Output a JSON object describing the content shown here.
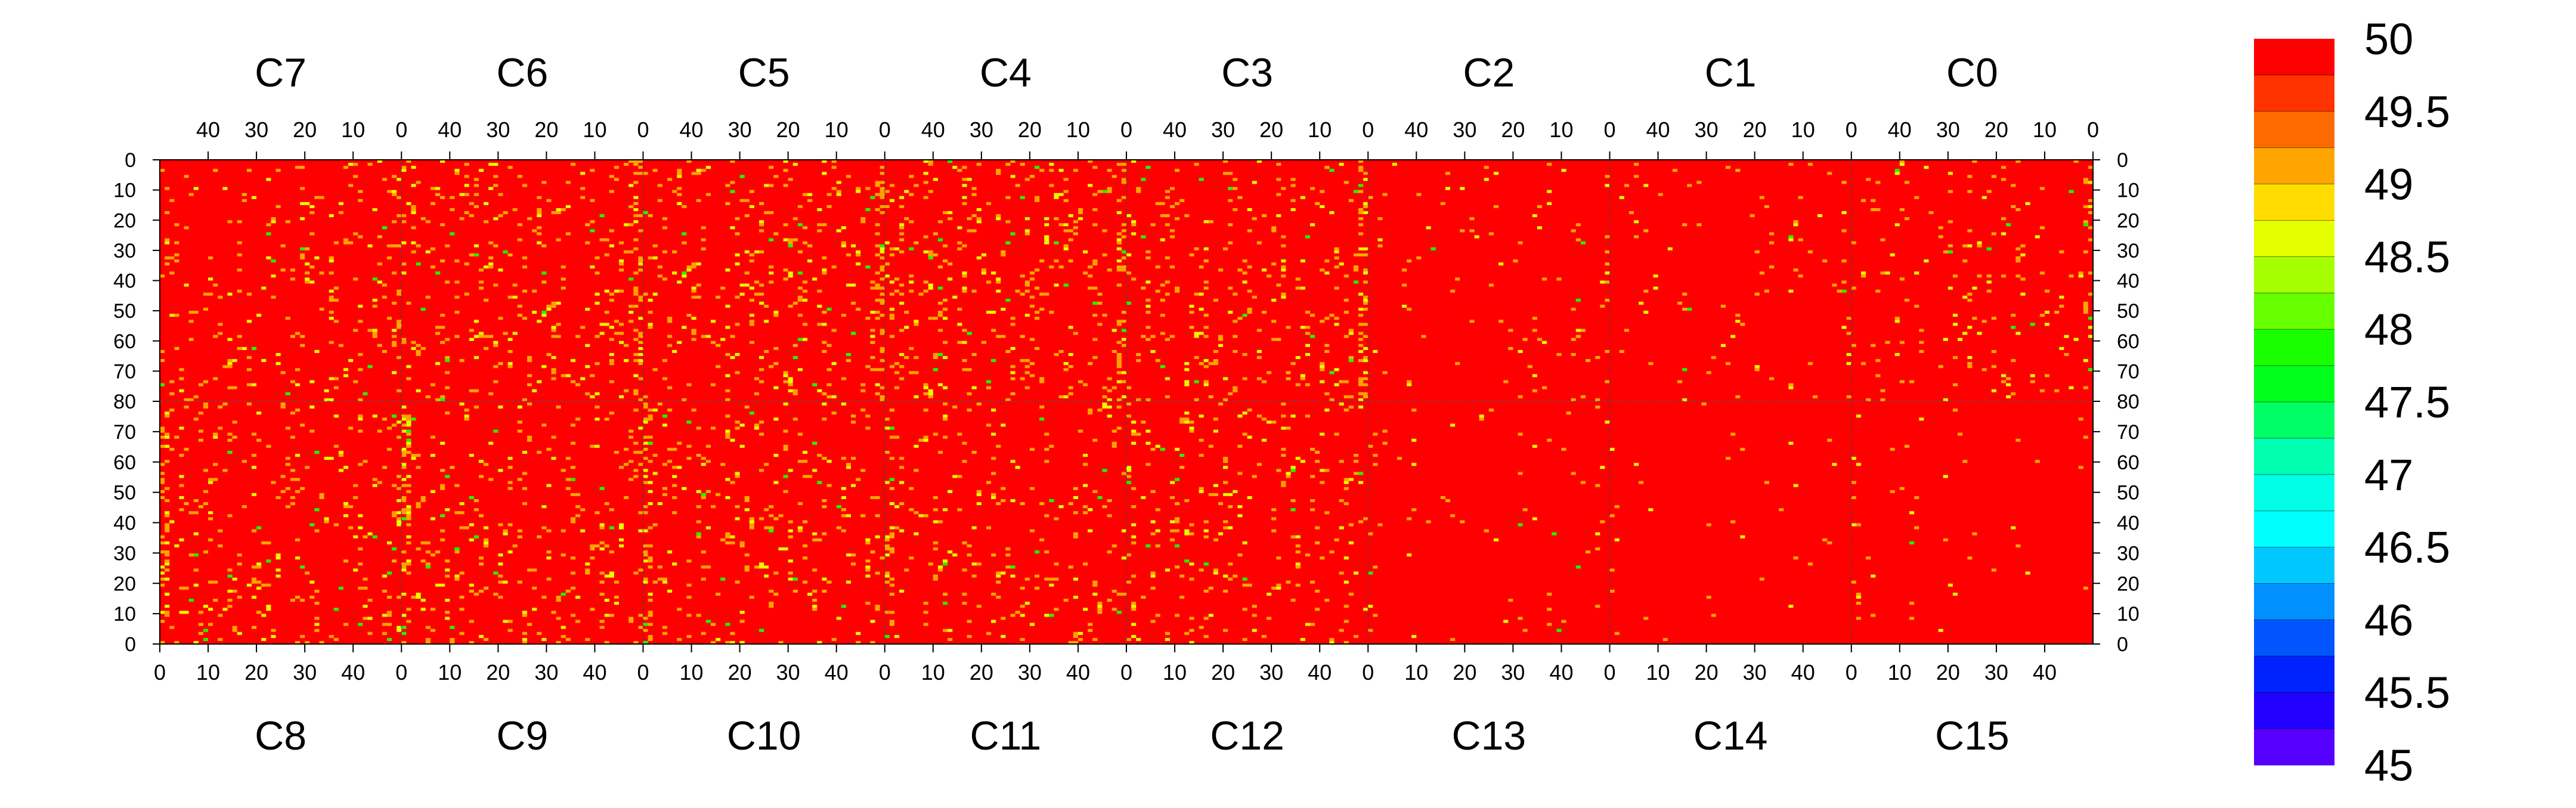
{
  "chart_data": {
    "type": "heatmap",
    "title": "",
    "xlabel": "",
    "ylabel": "",
    "top_panels": [
      {
        "label": "C7",
        "x_ticks": [
          40,
          30,
          20,
          10,
          0
        ],
        "x_range": [
          50,
          0
        ]
      },
      {
        "label": "C6",
        "x_ticks": [
          40,
          30,
          20,
          10,
          0
        ],
        "x_range": [
          50,
          0
        ]
      },
      {
        "label": "C5",
        "x_ticks": [
          40,
          30,
          20,
          10,
          0
        ],
        "x_range": [
          50,
          0
        ]
      },
      {
        "label": "C4",
        "x_ticks": [
          40,
          30,
          20,
          10,
          0
        ],
        "x_range": [
          50,
          0
        ]
      },
      {
        "label": "C3",
        "x_ticks": [
          40,
          30,
          20,
          10,
          0
        ],
        "x_range": [
          50,
          0
        ]
      },
      {
        "label": "C2",
        "x_ticks": [
          40,
          30,
          20,
          10,
          0
        ],
        "x_range": [
          50,
          0
        ]
      },
      {
        "label": "C1",
        "x_ticks": [
          40,
          30,
          20,
          10,
          0
        ],
        "x_range": [
          50,
          0
        ]
      },
      {
        "label": "C0",
        "x_ticks": [
          40,
          30,
          20,
          10,
          0
        ],
        "x_range": [
          50,
          0
        ]
      }
    ],
    "bottom_panels": [
      {
        "label": "C8",
        "x_ticks": [
          0,
          10,
          20,
          30,
          40
        ],
        "x_range": [
          0,
          50
        ]
      },
      {
        "label": "C9",
        "x_ticks": [
          0,
          10,
          20,
          30,
          40
        ],
        "x_range": [
          0,
          50
        ]
      },
      {
        "label": "C10",
        "x_ticks": [
          0,
          10,
          20,
          30,
          40
        ],
        "x_range": [
          0,
          50
        ]
      },
      {
        "label": "C11",
        "x_ticks": [
          0,
          10,
          20,
          30,
          40
        ],
        "x_range": [
          0,
          50
        ]
      },
      {
        "label": "C12",
        "x_ticks": [
          0,
          10,
          20,
          30,
          40
        ],
        "x_range": [
          0,
          50
        ]
      },
      {
        "label": "C13",
        "x_ticks": [
          0,
          10,
          20,
          30,
          40
        ],
        "x_range": [
          0,
          50
        ]
      },
      {
        "label": "C14",
        "x_ticks": [
          0,
          10,
          20,
          30,
          40
        ],
        "x_range": [
          0,
          50
        ]
      },
      {
        "label": "C15",
        "x_ticks": [
          0,
          10,
          20,
          30,
          40
        ],
        "x_range": [
          0,
          50
        ]
      }
    ],
    "top_y_ticks": [
      80,
      70,
      60,
      50,
      40,
      30,
      20,
      10,
      0
    ],
    "bottom_y_ticks": [
      0,
      10,
      20,
      30,
      40,
      50,
      60,
      70
    ],
    "y_range_per_half": [
      0,
      80
    ],
    "grid": false,
    "colorbar": {
      "range": [
        45,
        50
      ],
      "step": 0.25,
      "tick_labels": [
        "50",
        "49.5",
        "49",
        "48.5",
        "48",
        "47.5",
        "47",
        "46.5",
        "46",
        "45.5",
        "45"
      ],
      "colors_top_to_bottom": [
        "#ff0000",
        "#ff3300",
        "#ff6a00",
        "#ffa500",
        "#ffdd00",
        "#e6ff00",
        "#a6ff00",
        "#66ff00",
        "#1aff00",
        "#00ff1a",
        "#00ff66",
        "#00ffb0",
        "#00ffe6",
        "#00ffff",
        "#00c8ff",
        "#0090ff",
        "#0055ff",
        "#0022ff",
        "#2200ff",
        "#5500ff"
      ]
    },
    "value_summary": {
      "dominant_value": 50,
      "sparse_values": [
        49.25,
        48.75,
        48.0
      ]
    }
  }
}
